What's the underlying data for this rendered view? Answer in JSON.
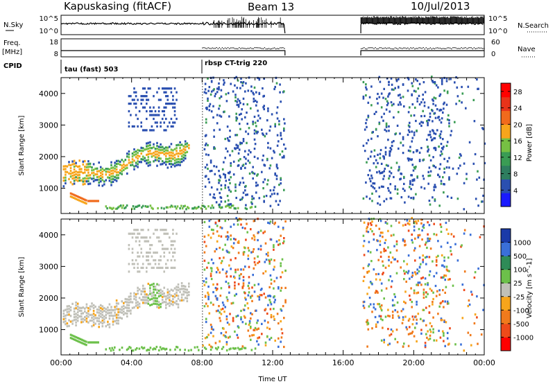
{
  "header": {
    "title": "Kapuskasing (fitACF)",
    "beam": "Beam 13",
    "date": "10/Jul/2013"
  },
  "top_panels": {
    "nsky_label": "N.Sky",
    "nsky_ticks": [
      "10^5",
      "10^0"
    ],
    "nsearch_label": "N.Search",
    "nsearch_ticks": [
      "10^5",
      "10^0"
    ],
    "freq_label": "Freq.",
    "freq_unit": "[MHz]",
    "freq_ticks": [
      "18",
      "8"
    ],
    "nave_label": "Nave",
    "nave_ticks": [
      "60",
      "0"
    ],
    "cpid_label": "CPID",
    "cpid_segments": [
      {
        "label": "tau (fast) 503",
        "start_hour": 0
      },
      {
        "label": "rbsp CT-trig 220",
        "start_hour": 8
      }
    ]
  },
  "colors": {
    "power": [
      "#1a1aff",
      "#2a4fb0",
      "#2e7d5f",
      "#3a9c54",
      "#76c043",
      "#f7a51b",
      "#f06a1c",
      "#e8331a",
      "#ff0000"
    ],
    "velocity": [
      "#1a3aa8",
      "#3a6fd8",
      "#2e8b57",
      "#6cc04a",
      "#c0c0b8",
      "#f7a51b",
      "#f07a1c",
      "#ee4a1a",
      "#ff0000"
    ]
  },
  "chart_data": [
    {
      "type": "heatmap",
      "name": "power",
      "xlabel": "",
      "ylabel": "Slant Range [km]",
      "xlim": [
        0,
        24
      ],
      "ylim": [
        200,
        4500
      ],
      "yticks": [
        "1000",
        "2000",
        "3000",
        "4000"
      ],
      "colorbar_label": "Power [dB]",
      "colorbar_ticks": [
        "4",
        "8",
        "12",
        "16",
        "20",
        "24",
        "28"
      ],
      "colorbar_range": [
        0,
        30
      ]
    },
    {
      "type": "heatmap",
      "name": "velocity",
      "xlabel": "Time UT",
      "ylabel": "Slant Range [km]",
      "xlim": [
        0,
        24
      ],
      "ylim": [
        200,
        4500
      ],
      "xticks": [
        "00:00",
        "04:00",
        "08:00",
        "12:00",
        "16:00",
        "20:00",
        "00:00"
      ],
      "yticks": [
        "1000",
        "2000",
        "3000",
        "4000"
      ],
      "colorbar_label": "Velocity [m s^-1]",
      "colorbar_ticks": [
        "1000",
        "500",
        "100",
        "25",
        "-25",
        "-100",
        "-500",
        "-1000"
      ]
    }
  ]
}
